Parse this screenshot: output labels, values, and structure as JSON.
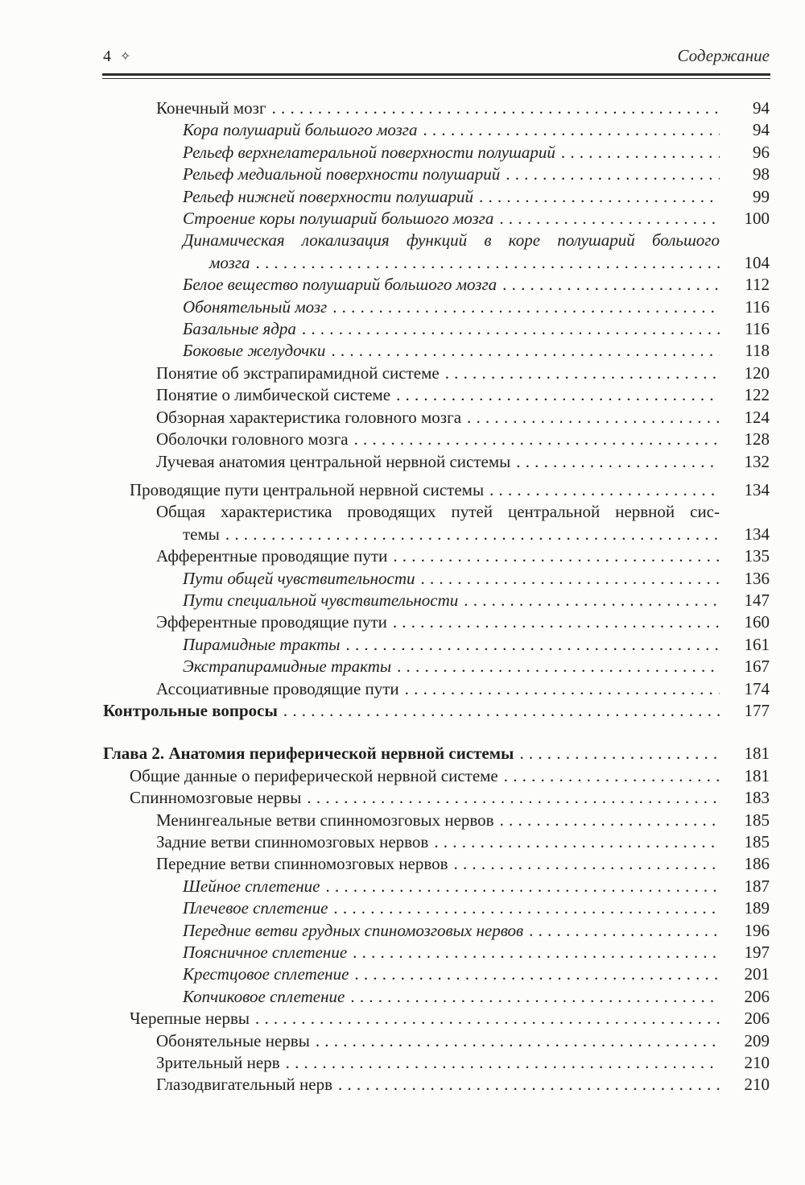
{
  "header": {
    "page_number": "4",
    "ornament": "✧",
    "running_title": "Содержание"
  },
  "toc": {
    "entries": [
      {
        "title": "Конечный мозг",
        "page": "94",
        "level": 2,
        "style": "regular"
      },
      {
        "title": "Кора полушарий большого мозга",
        "page": "94",
        "level": 3,
        "style": "italic"
      },
      {
        "title": "Рельеф верхнелатеральной поверхности полушарий",
        "page": "96",
        "level": 3,
        "style": "italic"
      },
      {
        "title": "Рельеф медиальной поверхности полушарий",
        "page": "98",
        "level": 3,
        "style": "italic"
      },
      {
        "title": "Рельеф нижней поверхности полушарий",
        "page": "99",
        "level": 3,
        "style": "italic"
      },
      {
        "title": "Строение коры полушарий большого мозга",
        "page": "100",
        "level": 3,
        "style": "italic"
      },
      {
        "title_line1": "Динамическая локализация функций в коре полушарий большого",
        "title_line2": "мозга",
        "page": "104",
        "level": 3,
        "style": "italic"
      },
      {
        "title": "Белое вещество полушарий большого мозга",
        "page": "112",
        "level": 3,
        "style": "italic"
      },
      {
        "title": "Обонятельный мозг",
        "page": "116",
        "level": 3,
        "style": "italic"
      },
      {
        "title": "Базальные ядра",
        "page": "116",
        "level": 3,
        "style": "italic"
      },
      {
        "title": "Боковые желудочки",
        "page": "118",
        "level": 3,
        "style": "italic"
      },
      {
        "title": "Понятие об экстрапирамидной системе",
        "page": "120",
        "level": 2,
        "style": "regular"
      },
      {
        "title": "Понятие о лимбической системе",
        "page": "122",
        "level": 2,
        "style": "regular"
      },
      {
        "title": "Обзорная характеристика головного мозга",
        "page": "124",
        "level": 2,
        "style": "regular"
      },
      {
        "title": "Оболочки головного мозга",
        "page": "128",
        "level": 2,
        "style": "regular"
      },
      {
        "title": "Лучевая анатомия центральной нервной системы",
        "page": "132",
        "level": 2,
        "style": "regular"
      },
      {
        "title": "Проводящие пути центральной нервной системы",
        "page": "134",
        "level": 1,
        "style": "regular",
        "section_break": "small"
      },
      {
        "title_line1": "Общая характеристика проводящих путей центральной нервной сис-",
        "title_line2": "темы",
        "page": "134",
        "level": 2,
        "style": "regular"
      },
      {
        "title": "Афферентные проводящие пути",
        "page": "135",
        "level": 2,
        "style": "regular"
      },
      {
        "title": "Пути общей чувствительности",
        "page": "136",
        "level": 3,
        "style": "italic"
      },
      {
        "title": "Пути специальной чувствительности",
        "page": "147",
        "level": 3,
        "style": "italic"
      },
      {
        "title": "Эфферентные проводящие пути",
        "page": "160",
        "level": 2,
        "style": "regular"
      },
      {
        "title": "Пирамидные тракты",
        "page": "161",
        "level": 3,
        "style": "italic"
      },
      {
        "title": "Экстрапирамидные тракты",
        "page": "167",
        "level": 3,
        "style": "italic"
      },
      {
        "title": "Ассоциативные проводящие пути",
        "page": "174",
        "level": 2,
        "style": "regular"
      },
      {
        "title": "Контрольные вопросы",
        "page": "177",
        "level": 0,
        "style": "bold"
      },
      {
        "title": "Глава 2. Анатомия периферической нервной системы",
        "page": "181",
        "level": 0,
        "style": "bold",
        "section_break": "large"
      },
      {
        "title": "Общие данные о периферической нервной системе",
        "page": "181",
        "level": 1,
        "style": "regular"
      },
      {
        "title": "Спинномозговые нервы",
        "page": "183",
        "level": 1,
        "style": "regular"
      },
      {
        "title": "Менингеальные ветви спинномозговых нервов",
        "page": "185",
        "level": 2,
        "style": "regular"
      },
      {
        "title": "Задние ветви спинномозговых нервов",
        "page": "185",
        "level": 2,
        "style": "regular"
      },
      {
        "title": "Передние ветви спинномозговых нервов",
        "page": "186",
        "level": 2,
        "style": "regular"
      },
      {
        "title": "Шейное сплетение",
        "page": "187",
        "level": 3,
        "style": "italic"
      },
      {
        "title": "Плечевое сплетение",
        "page": "189",
        "level": 3,
        "style": "italic"
      },
      {
        "title": "Передние ветви грудных спиномозговых нервов",
        "page": "196",
        "level": 3,
        "style": "italic"
      },
      {
        "title": "Поясничное сплетение",
        "page": "197",
        "level": 3,
        "style": "italic"
      },
      {
        "title": "Крестцовое сплетение",
        "page": "201",
        "level": 3,
        "style": "italic"
      },
      {
        "title": "Копчиковое сплетение",
        "page": "206",
        "level": 3,
        "style": "italic"
      },
      {
        "title": "Черепные нервы",
        "page": "206",
        "level": 1,
        "style": "regular"
      },
      {
        "title": "Обонятельные нервы",
        "page": "209",
        "level": 2,
        "style": "regular"
      },
      {
        "title": "Зрительный нерв",
        "page": "210",
        "level": 2,
        "style": "regular"
      },
      {
        "title": "Глазодвигательный нерв",
        "page": "210",
        "level": 2,
        "style": "regular"
      }
    ]
  }
}
